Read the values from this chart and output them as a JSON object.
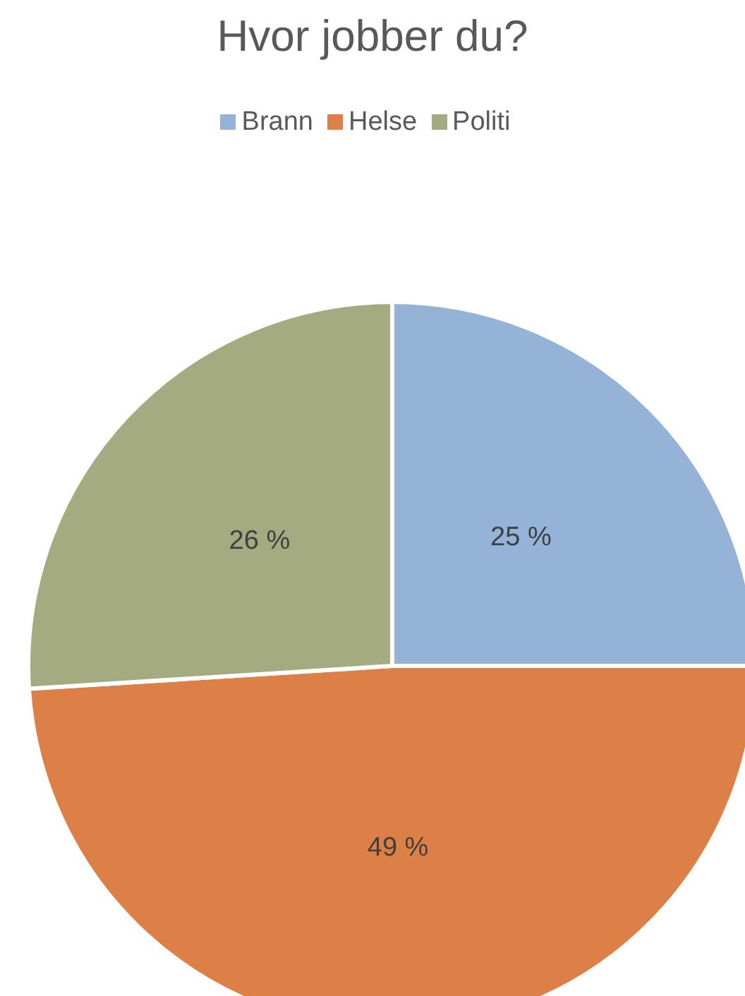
{
  "chart_data": {
    "type": "pie",
    "title": "Hvor jobber du?",
    "categories": [
      "Brann",
      "Helse",
      "Politi"
    ],
    "values": [
      25,
      49,
      26
    ],
    "colors": [
      "#95b3d7",
      "#dd8047",
      "#a5ab81"
    ],
    "value_labels": [
      "25 %",
      "49 %",
      "26 %"
    ],
    "legend": "top"
  }
}
